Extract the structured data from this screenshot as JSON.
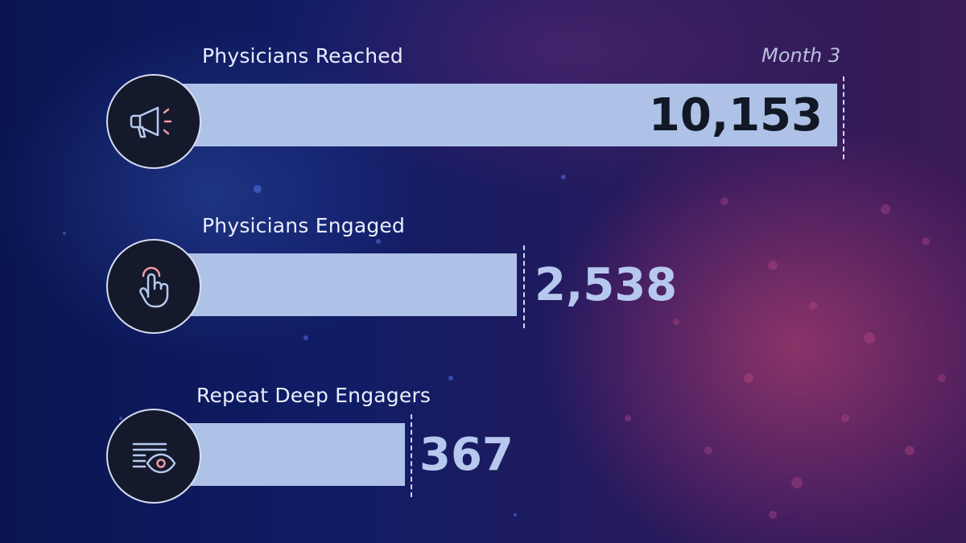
{
  "period_label": "Month 3",
  "colors": {
    "bar": "#aec2e8",
    "value_on_bar": "#131826",
    "value_off_bar": "#b7c8ef",
    "accent_pink": "#f29aa8"
  },
  "metrics": [
    {
      "label": "Physicians Reached",
      "value": "10,153",
      "icon": "megaphone-icon"
    },
    {
      "label": "Physicians Engaged",
      "value": "2,538",
      "icon": "hand-pointer-icon"
    },
    {
      "label": "Repeat Deep Engagers",
      "value": "367",
      "icon": "eye-document-icon"
    }
  ]
}
